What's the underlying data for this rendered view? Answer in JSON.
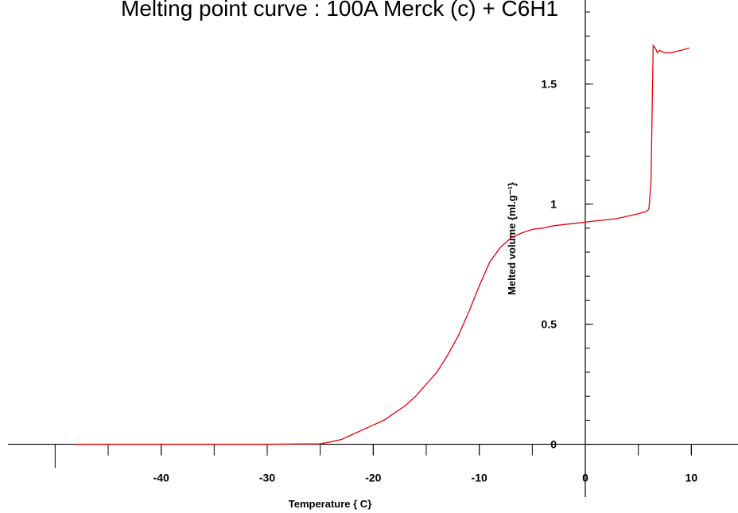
{
  "chart_data": {
    "type": "line",
    "title": "Melting point curve :  100A Merck (c) + C6H1",
    "x_label": "Temperature {   C}",
    "y_label": "Melted volume {ml.g⁻¹}",
    "xlim": [
      -55.2,
      14.4
    ],
    "ylim": [
      -0.22,
      1.85
    ],
    "xticks": [
      -40,
      -30,
      -20,
      -10,
      0,
      10
    ],
    "yticks": [
      0,
      0.5,
      1,
      1.5
    ],
    "grid": false,
    "x": [
      -48,
      -40,
      -30,
      -25,
      -24,
      -23,
      -22,
      -21,
      -20,
      -19,
      -18,
      -17,
      -16,
      -15,
      -14,
      -13,
      -12,
      -11,
      -10,
      -9,
      -8,
      -7,
      -6,
      -5,
      -4,
      -3,
      -2,
      -1,
      0,
      1,
      2,
      3,
      4,
      5,
      5.8,
      6,
      6.2,
      6.4,
      6.6,
      6.8,
      7,
      7.5,
      8,
      9,
      9.8
    ],
    "series": [
      {
        "color": "#e8000b",
        "values": [
          0,
          0,
          0,
          0.002,
          0.01,
          0.02,
          0.04,
          0.06,
          0.08,
          0.1,
          0.13,
          0.16,
          0.2,
          0.25,
          0.3,
          0.37,
          0.45,
          0.55,
          0.66,
          0.76,
          0.82,
          0.86,
          0.88,
          0.895,
          0.9,
          0.91,
          0.915,
          0.92,
          0.925,
          0.93,
          0.935,
          0.94,
          0.95,
          0.96,
          0.97,
          0.98,
          1.1,
          1.66,
          1.65,
          1.63,
          1.64,
          1.63,
          1.63,
          1.64,
          1.65
        ]
      }
    ]
  }
}
